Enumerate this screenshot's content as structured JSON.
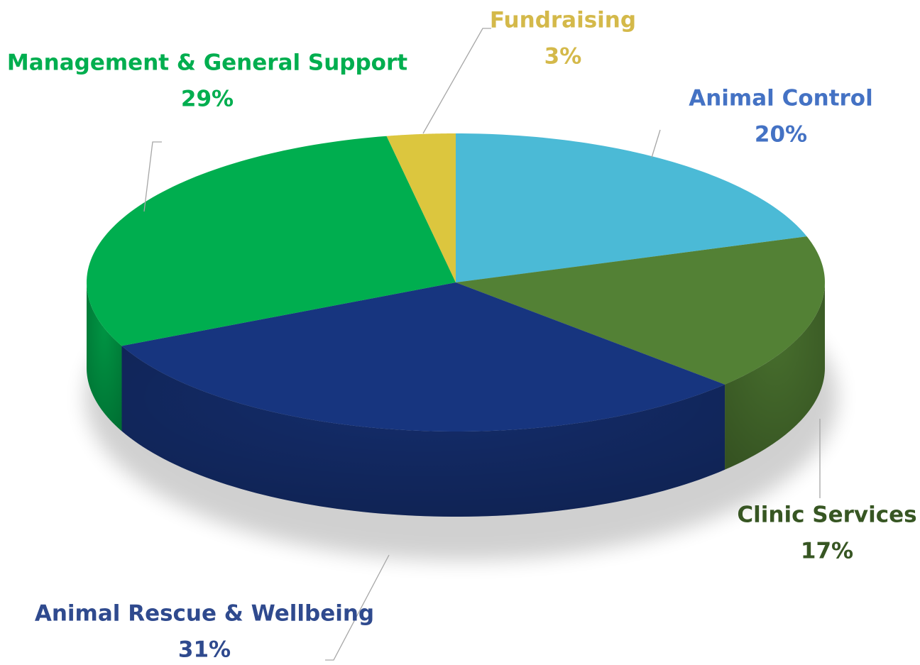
{
  "chart_data": {
    "type": "pie3d",
    "categories": [
      "Animal Control",
      "Clinic Services",
      "Animal Rescue & Wellbeing",
      "Management & General Support",
      "Fundraising"
    ],
    "values": [
      20,
      17,
      31,
      29,
      3
    ],
    "value_labels": [
      "20%",
      "17%",
      "31%",
      "29%",
      "3%"
    ],
    "colors": [
      "#4bbad6",
      "#538135",
      "#17357f",
      "#00ae4f",
      "#dcc63e"
    ],
    "label_colors": [
      "#4472c4",
      "#375623",
      "#2f4a8e",
      "#00ae4f",
      "#d4b94a"
    ]
  }
}
